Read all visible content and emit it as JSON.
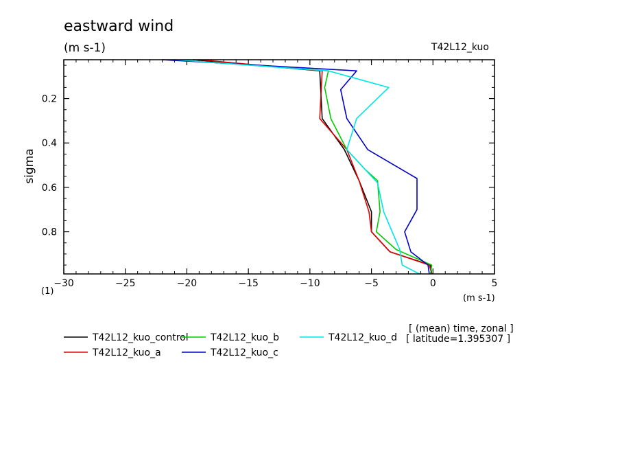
{
  "chart_data": {
    "type": "line",
    "title": "eastward wind",
    "subtitle": "(m s-1)",
    "experiment": "T42L12_kuo",
    "ylabel": "sigma",
    "ylabel_unit": "(1)",
    "xlabel_unit": "(m s-1)",
    "xlim": [
      -30,
      5
    ],
    "ylim": [
      0.99,
      0.025
    ],
    "y_inverted": true,
    "x_ticks": [
      -30,
      -25,
      -20,
      -15,
      -10,
      -5,
      0,
      5
    ],
    "x_tick_labels": [
      "−30",
      "−25",
      "−20",
      "−15",
      "−10",
      "−5",
      "0",
      "5"
    ],
    "y_ticks": [
      0.2,
      0.4,
      0.6,
      0.8
    ],
    "y_tick_labels": [
      "0.2",
      "0.4",
      "0.6",
      "0.8"
    ],
    "grid": false,
    "legend_position": "bottom-left",
    "notes": [
      "[ (mean) time, zonal ]",
      "[ latitude=1.395307 ]"
    ],
    "series": [
      {
        "name": "T42L12_kuo_control",
        "color": "#000000",
        "points": [
          [
            -19.5,
            0.025
          ],
          [
            -9.2,
            0.075
          ],
          [
            -9.0,
            0.29
          ],
          [
            -7.2,
            0.43
          ],
          [
            -6.0,
            0.57
          ],
          [
            -5.0,
            0.71
          ],
          [
            -5.0,
            0.8
          ],
          [
            -3.5,
            0.89
          ],
          [
            -0.2,
            0.95
          ],
          [
            -0.1,
            0.99
          ]
        ]
      },
      {
        "name": "T42L12_kuo_a",
        "color": "#e00000",
        "points": [
          [
            -19.0,
            0.025
          ],
          [
            -9.0,
            0.075
          ],
          [
            -9.2,
            0.29
          ],
          [
            -7.0,
            0.43
          ],
          [
            -6.0,
            0.57
          ],
          [
            -5.2,
            0.71
          ],
          [
            -5.0,
            0.8
          ],
          [
            -3.5,
            0.89
          ],
          [
            -0.3,
            0.95
          ],
          [
            -0.1,
            0.99
          ]
        ]
      },
      {
        "name": "T42L12_kuo_b",
        "color": "#00cc00",
        "points": [
          [
            -21.0,
            0.025
          ],
          [
            -8.5,
            0.075
          ],
          [
            -8.8,
            0.15
          ],
          [
            -8.3,
            0.29
          ],
          [
            -7.0,
            0.43
          ],
          [
            -5.5,
            0.52
          ],
          [
            -4.5,
            0.57
          ],
          [
            -4.3,
            0.71
          ],
          [
            -4.6,
            0.8
          ],
          [
            -3.0,
            0.88
          ],
          [
            -0.1,
            0.95
          ],
          [
            -0.2,
            0.99
          ]
        ]
      },
      {
        "name": "T42L12_kuo_c",
        "color": "#0000c8",
        "points": [
          [
            -22.0,
            0.025
          ],
          [
            -6.2,
            0.075
          ],
          [
            -7.5,
            0.16
          ],
          [
            -7.0,
            0.29
          ],
          [
            -5.3,
            0.43
          ],
          [
            -1.3,
            0.56
          ],
          [
            -1.3,
            0.7
          ],
          [
            -2.3,
            0.8
          ],
          [
            -1.8,
            0.89
          ],
          [
            -0.4,
            0.95
          ],
          [
            -0.3,
            0.99
          ]
        ]
      },
      {
        "name": "T42L12_kuo_d",
        "color": "#00e5e5",
        "points": [
          [
            -21.0,
            0.025
          ],
          [
            -8.5,
            0.075
          ],
          [
            -3.6,
            0.15
          ],
          [
            -6.2,
            0.29
          ],
          [
            -7.0,
            0.43
          ],
          [
            -4.5,
            0.58
          ],
          [
            -4.0,
            0.71
          ],
          [
            -2.7,
            0.88
          ],
          [
            -2.5,
            0.95
          ],
          [
            -1.1,
            0.99
          ]
        ]
      }
    ]
  }
}
